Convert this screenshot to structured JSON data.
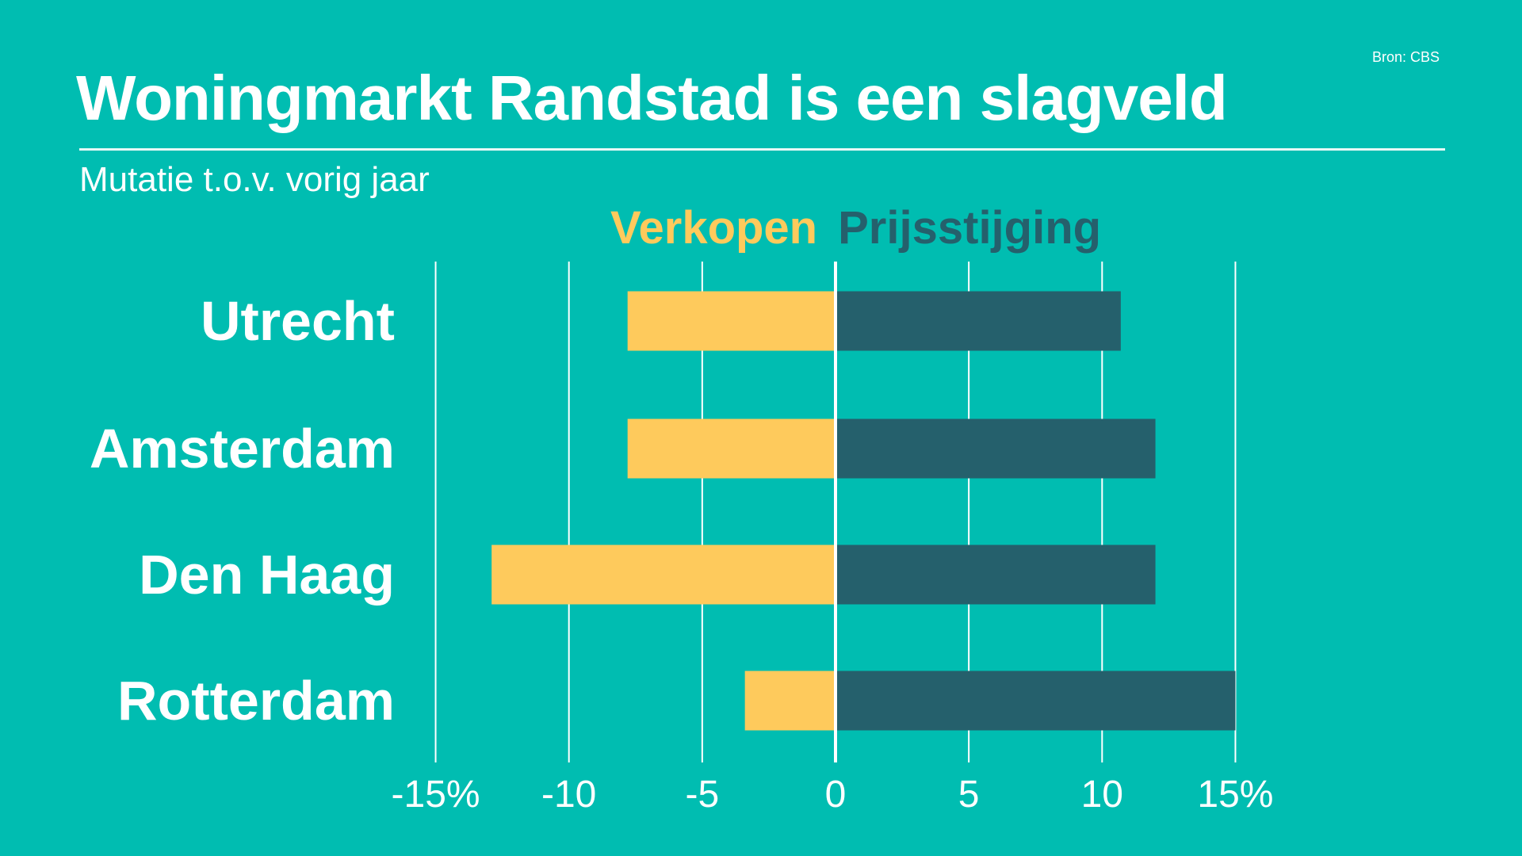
{
  "colors": {
    "background": "#00BDB1",
    "verkopen": "#FECA5C",
    "prijsstijging": "#25606C",
    "grid": "#FFFFFF"
  },
  "chart_data": {
    "type": "bar",
    "orientation": "horizontal",
    "title": "Woningmarkt Randstad is een slagveld",
    "subtitle": "Mutatie t.o.v. vorig jaar",
    "source": "Bron: CBS",
    "categories": [
      "Utrecht",
      "Amsterdam",
      "Den Haag",
      "Rotterdam"
    ],
    "series": [
      {
        "name": "Verkopen",
        "color": "#FECA5C",
        "values": [
          -7.8,
          -7.8,
          -12.9,
          -3.4
        ]
      },
      {
        "name": "Prijsstijging",
        "color": "#25606C",
        "values": [
          10.7,
          12.0,
          12.0,
          15.0
        ]
      }
    ],
    "xlim": [
      -15,
      15
    ],
    "xticks": [
      -15,
      -10,
      -5,
      0,
      5,
      10,
      15
    ],
    "xtick_labels": [
      "-15%",
      "-10",
      "-5",
      "0",
      "5",
      "10",
      "15%"
    ],
    "grid": true,
    "legend_placement": "top-center"
  }
}
